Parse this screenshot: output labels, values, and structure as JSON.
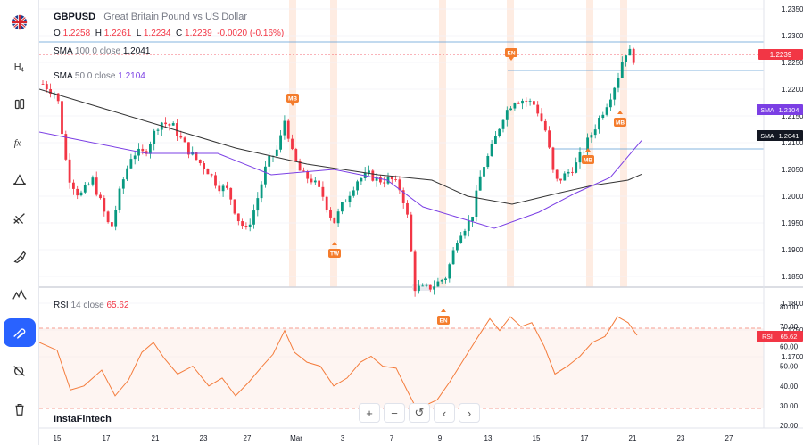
{
  "symbol": {
    "ticker": "GBPUSD",
    "description": "Great Britain Pound vs US Dollar",
    "o_label": "O",
    "o_value": "1.2258",
    "h_label": "H",
    "h_value": "1.2261",
    "l_label": "L",
    "l_value": "1.2234",
    "c_label": "C",
    "c_value": "1.2239",
    "change": "-0.0020 (-0.16%)",
    "flag_icon": "uk-flag-icon"
  },
  "indicators": {
    "sma100": {
      "name": "SMA",
      "params": "100 0 close",
      "value": "1.2041",
      "tag": "SMA",
      "tag_value": "1.2041"
    },
    "sma50": {
      "name": "SMA",
      "params": "50 0 close",
      "value": "1.2104",
      "tag": "SMA",
      "tag_value": "1.2104"
    },
    "rsi": {
      "name": "RSI",
      "params": "14 close",
      "value": "65.62",
      "tag": "RSI",
      "tag_value": "65.62"
    }
  },
  "last_price": "1.2239",
  "sidebar": {
    "tools": [
      {
        "name": "flag",
        "icon": "uk-flag-icon"
      },
      {
        "name": "h4",
        "icon": "timeframe-icon",
        "label": "H4"
      },
      {
        "name": "candles",
        "icon": "candles-icon"
      },
      {
        "name": "indicators",
        "icon": "fx-icon"
      },
      {
        "name": "trendline",
        "icon": "trendline-icon"
      },
      {
        "name": "fib",
        "icon": "fib-icon"
      },
      {
        "name": "brush",
        "icon": "brush-icon"
      },
      {
        "name": "patterns",
        "icon": "patterns-icon"
      },
      {
        "name": "magnet",
        "icon": "magnet-icon"
      },
      {
        "name": "hide",
        "icon": "eye-off-icon"
      },
      {
        "name": "delete",
        "icon": "trash-icon"
      }
    ]
  },
  "brand": "InstaFintech",
  "bottom_toolbar": [
    "+",
    "−",
    "↺",
    "‹",
    "›"
  ],
  "chart_data": {
    "type": "candlestick",
    "price_axis": [
      "1.2350",
      "1.2300",
      "1.2250",
      "1.2200",
      "1.2150",
      "1.2100",
      "1.2050",
      "1.2000",
      "1.1950",
      "1.1900",
      "1.1850",
      "1.1800",
      "1.1750",
      "1.1700"
    ],
    "rsi_axis": [
      "80.00",
      "70.00",
      "60.00",
      "50.00",
      "40.00",
      "30.00",
      "20.00"
    ],
    "x_labels": [
      "15",
      "17",
      "21",
      "23",
      "27",
      "Mar",
      "3",
      "7",
      "9",
      "13",
      "15",
      "17",
      "21",
      "23",
      "27"
    ],
    "markers": [
      {
        "label": "MB",
        "date": "Feb 29",
        "direction": "down",
        "price": 1.2155
      },
      {
        "label": "TW",
        "date": "Mar 4",
        "direction": "up",
        "price": 1.1925
      },
      {
        "label": "EN",
        "date": "Mar 9",
        "direction": "up",
        "price": 1.18
      },
      {
        "label": "EN",
        "date": "Mar 14",
        "direction": "down",
        "price": 1.224
      },
      {
        "label": "MB",
        "date": "Mar 18",
        "direction": "up",
        "price": 1.21
      },
      {
        "label": "MB",
        "date": "Mar 20",
        "direction": "up",
        "price": 1.217
      }
    ],
    "rsi_levels": [
      70,
      30
    ],
    "horizontal_levels": [
      1.2268,
      1.22,
      1.2012
    ]
  }
}
